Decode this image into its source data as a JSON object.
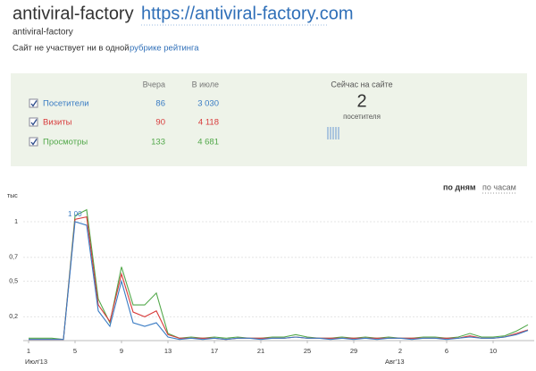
{
  "header": {
    "title": "antiviral-factory",
    "link": "https://antiviral-factory.com",
    "subtitle": "antiviral-factory",
    "notice": "Сайт не участвует ни в одной",
    "notice_link": "рубрике рейтинга"
  },
  "stats": {
    "columns": [
      "Вчера",
      "В июле"
    ],
    "rows": [
      {
        "label": "Посетители",
        "yesterday": 86,
        "month": "3 030"
      },
      {
        "label": "Визиты",
        "yesterday": 90,
        "month": "4 118"
      },
      {
        "label": "Просмотры",
        "yesterday": 133,
        "month": "4 681"
      }
    ]
  },
  "online": {
    "title": "Сейчас на сайте",
    "count": 2,
    "label": "посетителя"
  },
  "tabs": [
    "по дням",
    "по часам"
  ],
  "chart_data": {
    "type": "line",
    "y_unit": "тыс",
    "annotation": "1 00",
    "categories": [
      "1",
      null,
      null,
      null,
      "5",
      null,
      null,
      null,
      "9",
      null,
      null,
      null,
      "13",
      null,
      null,
      null,
      "17",
      null,
      null,
      null,
      "21",
      null,
      null,
      null,
      "25",
      null,
      null,
      null,
      "29",
      null,
      null,
      null,
      "2",
      null,
      null,
      null,
      "6",
      null,
      null,
      null,
      "10",
      null,
      null,
      null
    ],
    "months": [
      "Июл'13",
      "Авг'13"
    ],
    "series": [
      {
        "color": "#3a7cc4",
        "values": [
          0.01,
          0.01,
          0.01,
          0.01,
          1.0,
          0.97,
          0.25,
          0.12,
          0.5,
          0.15,
          0.12,
          0.15,
          0.03,
          0.01,
          0.02,
          0.01,
          0.02,
          0.01,
          0.02,
          0.02,
          0.01,
          0.02,
          0.02,
          0.03,
          0.02,
          0.02,
          0.01,
          0.02,
          0.01,
          0.02,
          0.01,
          0.02,
          0.02,
          0.01,
          0.02,
          0.02,
          0.01,
          0.02,
          0.03,
          0.02,
          0.02,
          0.03,
          0.05,
          0.086
        ]
      },
      {
        "color": "#d83a3a",
        "values": [
          0.01,
          0.01,
          0.01,
          0.01,
          1.02,
          1.04,
          0.3,
          0.16,
          0.56,
          0.24,
          0.2,
          0.25,
          0.05,
          0.02,
          0.02,
          0.02,
          0.02,
          0.01,
          0.02,
          0.02,
          0.02,
          0.02,
          0.02,
          0.03,
          0.02,
          0.02,
          0.02,
          0.02,
          0.02,
          0.02,
          0.02,
          0.02,
          0.02,
          0.02,
          0.02,
          0.02,
          0.02,
          0.02,
          0.04,
          0.02,
          0.02,
          0.03,
          0.06,
          0.09
        ]
      },
      {
        "color": "#52a84a",
        "values": [
          0.02,
          0.02,
          0.02,
          0.01,
          1.05,
          1.1,
          0.35,
          0.15,
          0.62,
          0.3,
          0.3,
          0.4,
          0.06,
          0.02,
          0.03,
          0.02,
          0.03,
          0.02,
          0.03,
          0.02,
          0.02,
          0.03,
          0.03,
          0.05,
          0.03,
          0.02,
          0.02,
          0.03,
          0.02,
          0.03,
          0.02,
          0.03,
          0.02,
          0.02,
          0.03,
          0.03,
          0.02,
          0.03,
          0.06,
          0.03,
          0.03,
          0.04,
          0.08,
          0.133
        ]
      }
    ],
    "ylim": [
      0,
      1.15
    ],
    "yticks": [
      {
        "value": 0.2,
        "label": "0,2"
      },
      {
        "value": 0.5,
        "label": "0,5"
      },
      {
        "value": 0.7,
        "label": "0,7"
      },
      1
    ],
    "grid": true
  }
}
